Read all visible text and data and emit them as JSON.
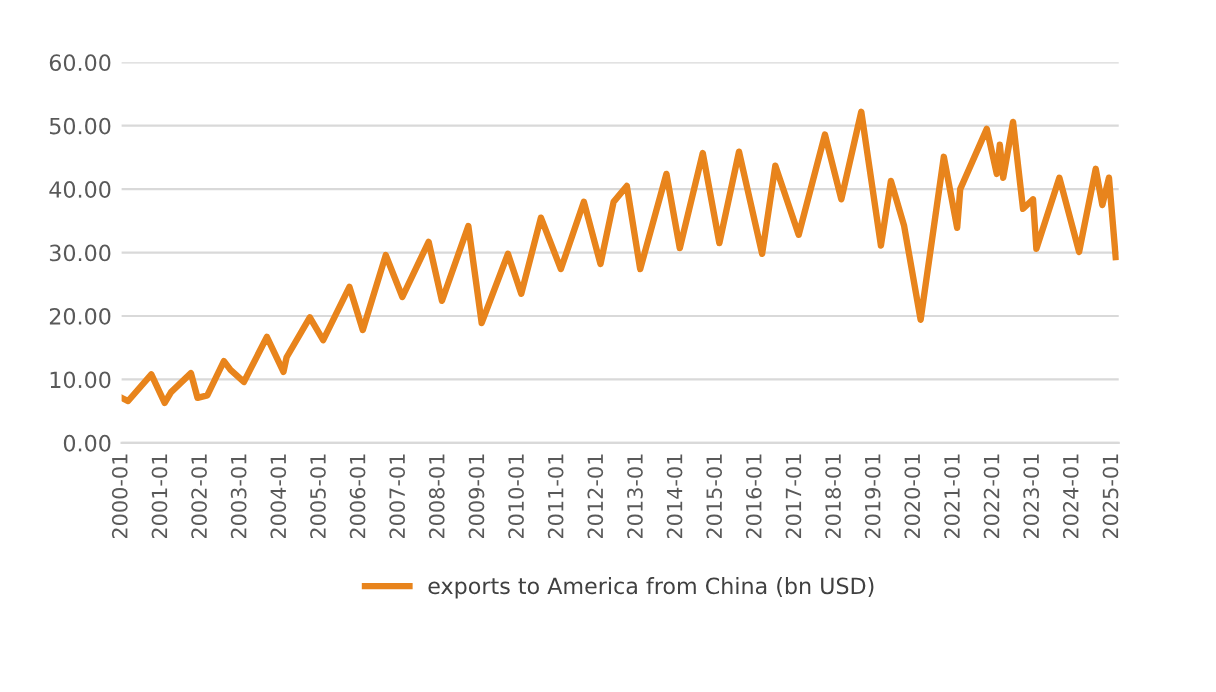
{
  "chart_data": {
    "type": "line",
    "x": [
      "2000-01",
      "2000-03",
      "2000-10",
      "2001-02",
      "2001-04",
      "2001-10",
      "2001-12",
      "2002-03",
      "2002-08",
      "2002-10",
      "2003-02",
      "2003-09",
      "2004-02",
      "2004-03",
      "2004-10",
      "2005-02",
      "2005-10",
      "2006-02",
      "2006-09",
      "2007-02",
      "2007-10",
      "2008-02",
      "2008-10",
      "2009-02",
      "2009-10",
      "2010-02",
      "2010-08",
      "2011-02",
      "2011-09",
      "2012-02",
      "2012-06",
      "2012-10",
      "2013-02",
      "2013-10",
      "2014-02",
      "2014-09",
      "2015-02",
      "2015-08",
      "2016-03",
      "2016-07",
      "2017-02",
      "2017-10",
      "2018-03",
      "2018-09",
      "2019-03",
      "2019-06",
      "2019-10",
      "2020-03",
      "2020-10",
      "2021-02",
      "2021-03",
      "2021-11",
      "2022-02",
      "2022-03",
      "2022-04",
      "2022-07",
      "2022-10",
      "2023-01",
      "2023-02",
      "2023-09",
      "2024-03",
      "2024-08",
      "2024-10",
      "2024-12",
      "2025-02"
    ],
    "series": [
      {
        "name": "exports to America from China (bn USD)",
        "color": "#e8841c",
        "values": [
          7.1,
          6.6,
          10.8,
          6.3,
          8,
          11,
          7.1,
          7.5,
          12.9,
          11.5,
          9.6,
          16.7,
          11.2,
          13.5,
          19.8,
          16.2,
          24.6,
          17.8,
          29.6,
          23,
          31.7,
          22.4,
          34.2,
          18.9,
          29.8,
          23.5,
          35.5,
          27.4,
          38,
          28.2,
          38,
          40.5,
          27.4,
          42.4,
          30.7,
          45.7,
          31.5,
          45.9,
          29.8,
          43.7,
          32.8,
          48.6,
          38.4,
          52.2,
          31.1,
          41.3,
          34.2,
          19.4,
          45.1,
          33.9,
          40,
          49.5,
          42.4,
          47,
          41.8,
          50.6,
          36.9,
          38.4,
          30.6,
          41.8,
          30.1,
          43.2,
          37.5,
          41.8,
          29.3
        ]
      }
    ],
    "xlim": [
      "2000-01",
      "2025-03"
    ],
    "xticks": [
      "2000-01",
      "2001-01",
      "2002-01",
      "2003-01",
      "2004-01",
      "2005-01",
      "2006-01",
      "2007-01",
      "2008-01",
      "2009-01",
      "2010-01",
      "2011-01",
      "2012-01",
      "2013-01",
      "2014-01",
      "2015-01",
      "2016-01",
      "2017-01",
      "2018-01",
      "2019-01",
      "2020-01",
      "2021-01",
      "2022-01",
      "2023-01",
      "2024-01",
      "2025-01"
    ],
    "ylim": [
      0,
      60
    ],
    "yticks": [
      {
        "value": 0,
        "label": "0.00"
      },
      {
        "value": 10,
        "label": "10.00"
      },
      {
        "value": 20,
        "label": "20.00"
      },
      {
        "value": 30,
        "label": "30.00"
      },
      {
        "value": 40,
        "label": "40.00"
      },
      {
        "value": 50,
        "label": "50.00"
      },
      {
        "value": 60,
        "label": "60.00"
      }
    ],
    "grid": "y",
    "legend": "bottom",
    "marker": "none",
    "line_style": "solid"
  }
}
